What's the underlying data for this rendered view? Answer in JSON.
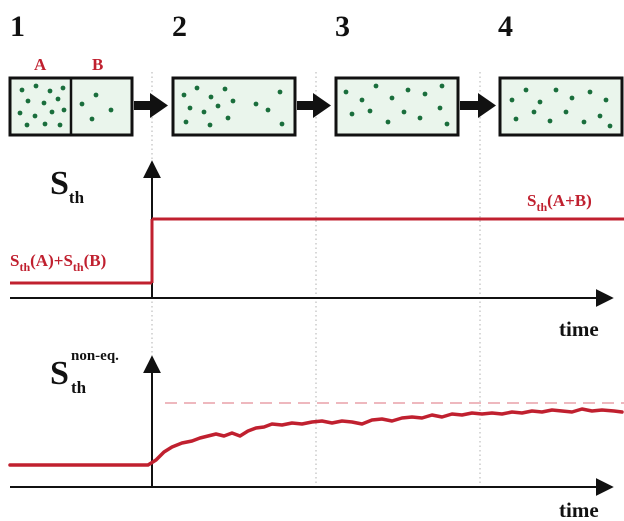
{
  "stages": [
    "1",
    "2",
    "3",
    "4"
  ],
  "box_labels": {
    "a": "A",
    "b": "B"
  },
  "panel1": {
    "y_label": {
      "main": "S",
      "sub": "th"
    },
    "before_label": {
      "s1": "S",
      "sub1": "th",
      "mid": "(A)+",
      "s2": "S",
      "sub2": "th",
      "end": "(B)"
    },
    "after_label": {
      "s": "S",
      "sub": "th",
      "rest": "(A+B)"
    },
    "x_label": "time"
  },
  "panel2": {
    "y_label": {
      "main": "S",
      "sub": "th",
      "sup": "non-eq."
    },
    "x_label": "time"
  },
  "colors": {
    "curve": "#c0202f",
    "dashed_reference": "#e8a0a8",
    "particles": "#1a6e3c",
    "box_fill": "#eaf5ec",
    "stage_divider": "#b0b0b0",
    "axis": "#111111"
  },
  "icons": [
    "right-arrow-icon",
    "axis-arrow-icon"
  ]
}
